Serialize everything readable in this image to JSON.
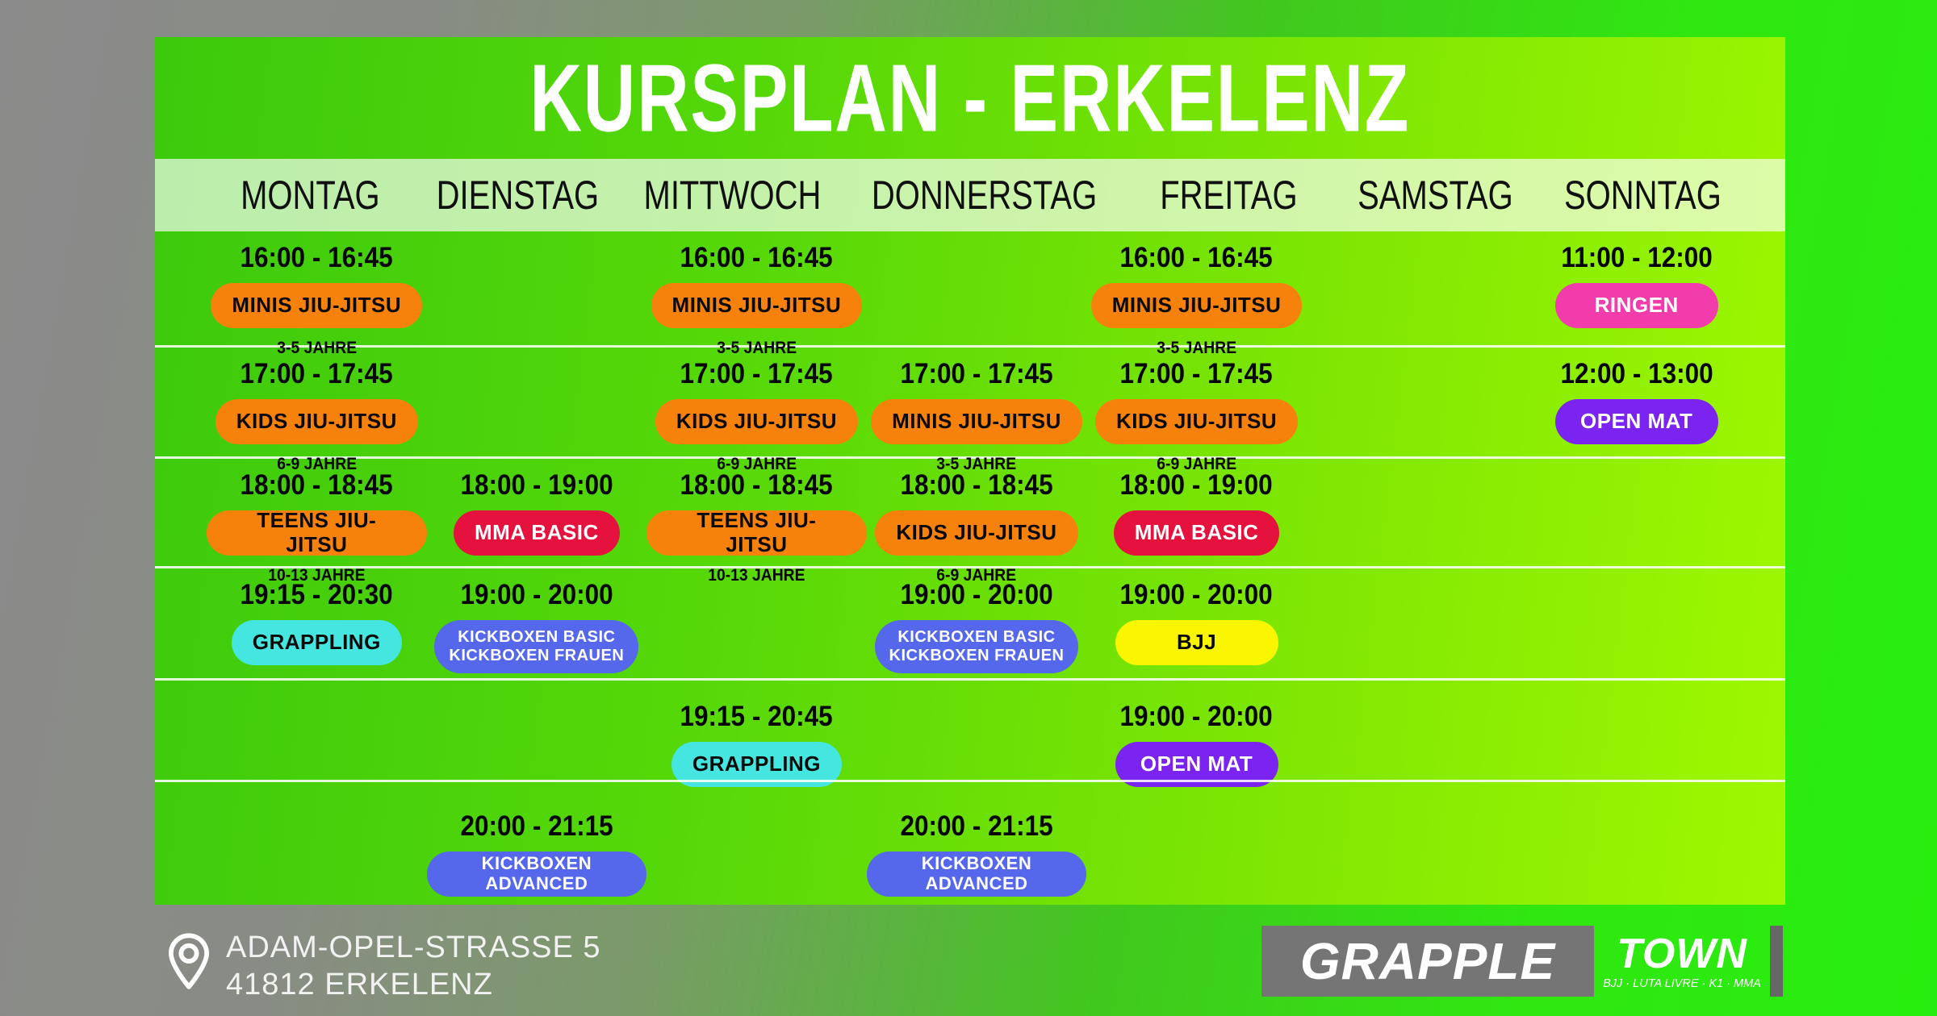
{
  "poster": {
    "title": "KURSPLAN - ERKELENZ"
  },
  "schedule": {
    "days": [
      "MONTAG",
      "DIENSTAG",
      "MITTWOCH",
      "DONNERSTAG",
      "FREITAG",
      "SAMSTAG",
      "SONNTAG"
    ],
    "rows": [
      [
        {
          "time": "16:00 - 16:45",
          "label": "MINIS JIU-JITSU",
          "age": "3-5 JAHRE",
          "color": "orange"
        },
        null,
        {
          "time": "16:00 - 16:45",
          "label": "MINIS JIU-JITSU",
          "age": "3-5 JAHRE",
          "color": "orange"
        },
        null,
        {
          "time": "16:00 - 16:45",
          "label": "MINIS JIU-JITSU",
          "age": "3-5 JAHRE",
          "color": "orange"
        },
        null,
        {
          "time": "11:00 - 12:00",
          "label": "RINGEN",
          "color": "pink"
        }
      ],
      [
        {
          "time": "17:00 - 17:45",
          "label": "KIDS JIU-JITSU",
          "age": "6-9 JAHRE",
          "color": "orange"
        },
        null,
        {
          "time": "17:00 - 17:45",
          "label": "KIDS JIU-JITSU",
          "age": "6-9 JAHRE",
          "color": "orange"
        },
        {
          "time": "17:00 - 17:45",
          "label": "MINIS JIU-JITSU",
          "age": "3-5 JAHRE",
          "color": "orange"
        },
        {
          "time": "17:00 - 17:45",
          "label": "KIDS JIU-JITSU",
          "age": "6-9 JAHRE",
          "color": "orange"
        },
        null,
        {
          "time": "12:00 - 13:00",
          "label": "OPEN MAT",
          "color": "purple"
        }
      ],
      [
        {
          "time": "18:00 - 18:45",
          "label": "TEENS JIU-JITSU",
          "age": "10-13 JAHRE",
          "color": "orange"
        },
        {
          "time": "18:00 - 19:00",
          "label": "MMA BASIC",
          "color": "red"
        },
        {
          "time": "18:00 - 18:45",
          "label": "TEENS JIU-JITSU",
          "age": "10-13 JAHRE",
          "color": "orange"
        },
        {
          "time": "18:00 - 18:45",
          "label": "KIDS JIU-JITSU",
          "age": "6-9 JAHRE",
          "color": "orange"
        },
        {
          "time": "18:00 - 19:00",
          "label": "MMA BASIC",
          "color": "red"
        },
        null,
        null
      ],
      [
        {
          "time": "19:15 - 20:30",
          "label": "GRAPPLING",
          "color": "cyan"
        },
        {
          "time": "19:00 - 20:00",
          "label": "KICKBOXEN BASIC\nKICKBOXEN FRAUEN",
          "color": "blue",
          "size": "xs"
        },
        null,
        {
          "time": "19:00 - 20:00",
          "label": "KICKBOXEN BASIC\nKICKBOXEN FRAUEN",
          "color": "blue",
          "size": "xs"
        },
        {
          "time": "19:00 - 20:00",
          "label": "BJJ",
          "color": "yellow"
        },
        null,
        null
      ],
      [
        null,
        null,
        {
          "time": "19:15 - 20:45",
          "label": "GRAPPLING",
          "color": "cyan"
        },
        null,
        {
          "time": "19:00 - 20:00",
          "label": "OPEN MAT",
          "color": "purple"
        },
        null,
        null
      ],
      [
        null,
        {
          "time": "20:00 - 21:15",
          "label": "KICKBOXEN ADVANCED",
          "color": "blue",
          "size": "sm"
        },
        null,
        {
          "time": "20:00 - 21:15",
          "label": "KICKBOXEN ADVANCED",
          "color": "blue",
          "size": "sm"
        },
        null,
        null,
        null
      ]
    ]
  },
  "class_colors": {
    "orange": {
      "bg": "#F6820C",
      "fg": "#0A0A0A"
    },
    "pink": {
      "bg": "#F23CAB",
      "fg": "#FFFFFF"
    },
    "purple": {
      "bg": "#7B24F2",
      "fg": "#FFFFFF"
    },
    "red": {
      "bg": "#E5123D",
      "fg": "#FFFFFF"
    },
    "cyan": {
      "bg": "#45E6E0",
      "fg": "#0A0A0A"
    },
    "blue": {
      "bg": "#5567EA",
      "fg": "#FFFFFF"
    },
    "yellow": {
      "bg": "#FAF500",
      "fg": "#0A0A0A"
    }
  },
  "footer": {
    "address_line1": "ADAM-OPEL-STRASSE 5",
    "address_line2": "41812 ERKELENZ",
    "logo": {
      "part1": "GRAPPLE",
      "part2": "TOWN",
      "tagline": "BJJ · LUTA LIVRE · K1 · MMA"
    }
  }
}
